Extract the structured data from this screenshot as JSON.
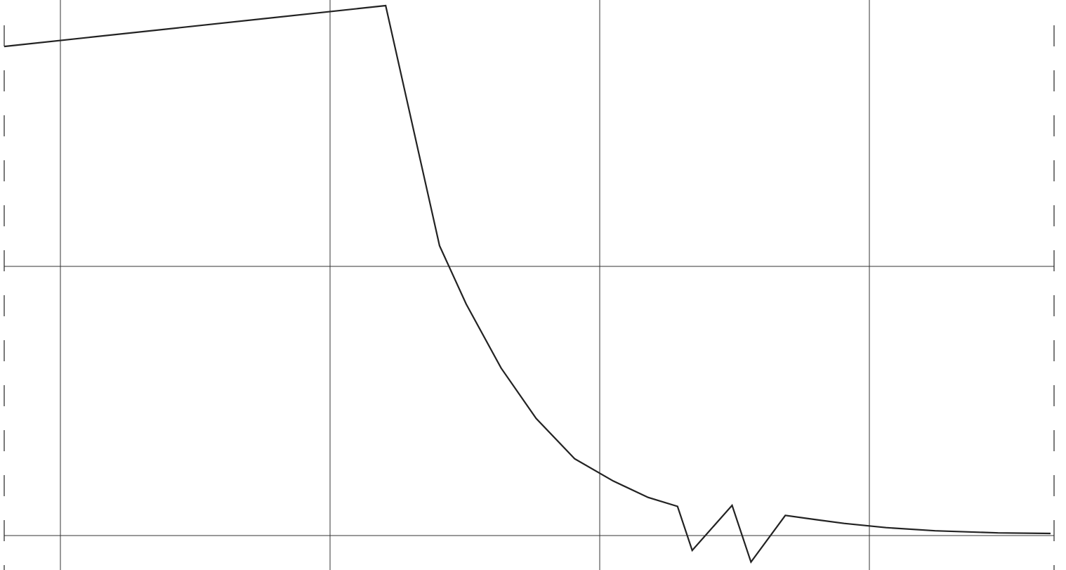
{
  "chart_data": {
    "type": "line",
    "title": "",
    "xlabel": "",
    "ylabel": "",
    "xlim": [
      0,
      1500
    ],
    "ylim": [
      0,
      100
    ],
    "grid": true,
    "tick_labels_visible": false,
    "line_color": "#222222",
    "grid_color": "#333333",
    "series": [
      {
        "points": [
          [
            0,
            92.3
          ],
          [
            545,
            100
          ],
          [
            622,
            54.7
          ],
          [
            660,
            43.7
          ],
          [
            710,
            31.6
          ],
          [
            760,
            22.1
          ],
          [
            815,
            14.5
          ],
          [
            870,
            10.3
          ],
          [
            920,
            7.2
          ],
          [
            962,
            5.5
          ],
          [
            983,
            -2.8
          ],
          [
            1040,
            5.7
          ],
          [
            1067,
            -5.0
          ],
          [
            1116,
            3.8
          ],
          [
            1160,
            3.0
          ],
          [
            1200,
            2.3
          ],
          [
            1260,
            1.5
          ],
          [
            1330,
            0.9
          ],
          [
            1420,
            0.5
          ],
          [
            1495,
            0.4
          ]
        ]
      }
    ]
  }
}
